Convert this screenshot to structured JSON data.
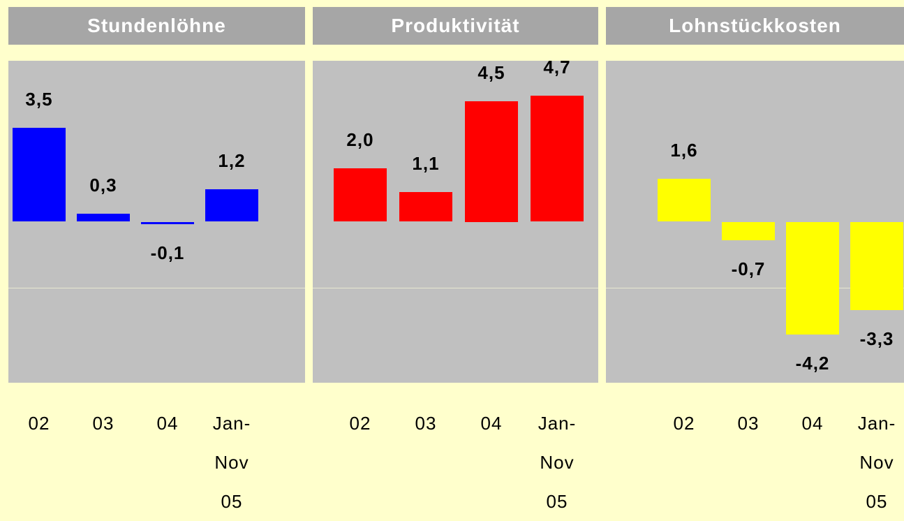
{
  "chart_data": [
    {
      "type": "bar",
      "title": "Stundenlöhne",
      "categories": [
        "02",
        "03",
        "04",
        "Jan-Nov 05"
      ],
      "values": [
        3.5,
        0.3,
        -0.1,
        1.2
      ],
      "value_labels": [
        "3,5",
        "0,3",
        "-0,1",
        "1,2"
      ],
      "color": "#0000ff",
      "ylim": [
        -6,
        6
      ]
    },
    {
      "type": "bar",
      "title": "Produktivität",
      "categories": [
        "02",
        "03",
        "04",
        "Jan-Nov 05"
      ],
      "values": [
        2.0,
        1.1,
        4.5,
        4.7
      ],
      "value_labels": [
        "2,0",
        "1,1",
        "4,5",
        "4,7"
      ],
      "color": "#ff0000",
      "ylim": [
        -6,
        6
      ]
    },
    {
      "type": "bar",
      "title": "Lohnstückkosten",
      "categories": [
        "02",
        "03",
        "04",
        "Jan-Nov 05"
      ],
      "values": [
        1.6,
        -0.7,
        -4.2,
        -3.3
      ],
      "value_labels": [
        "1,6",
        "-0,7",
        "-4,2",
        "-3,3"
      ],
      "color": "#ffff00",
      "ylim": [
        -6,
        6
      ]
    }
  ]
}
